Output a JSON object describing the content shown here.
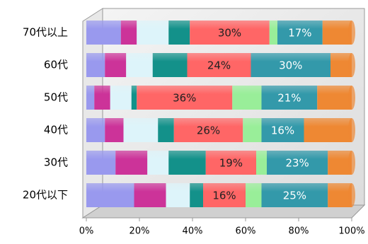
{
  "chart_data": {
    "type": "stacked-bar-horizontal",
    "categories": [
      "70代以上",
      "60代",
      "50代",
      "40代",
      "30代",
      "20代以下"
    ],
    "series": [
      {
        "color": "#9999ee",
        "values": [
          13,
          7,
          3,
          7,
          11,
          18
        ]
      },
      {
        "color": "#cc3399",
        "values": [
          6,
          8,
          6,
          7,
          12,
          12
        ]
      },
      {
        "color": "#ddf4fa",
        "values": [
          12,
          10,
          8,
          13,
          8,
          9
        ]
      },
      {
        "color": "#13918a",
        "values": [
          8,
          13,
          2,
          6,
          14,
          5
        ]
      },
      {
        "color": "#ff6666",
        "values": [
          30,
          24,
          36,
          26,
          19,
          16
        ],
        "value_labels": [
          "30%",
          "24%",
          "36%",
          "26%",
          "19%",
          "16%"
        ]
      },
      {
        "color": "#99ee99",
        "values": [
          3,
          0,
          11,
          7,
          4,
          6
        ]
      },
      {
        "color": "#3399aa",
        "values": [
          17,
          30,
          21,
          16,
          23,
          25
        ],
        "value_labels": [
          "17%",
          "30%",
          "21%",
          "16%",
          "23%",
          "25%"
        ]
      },
      {
        "color": "#ee8833",
        "values": [
          11,
          8,
          13,
          18,
          9,
          9
        ]
      }
    ],
    "xlim": [
      0,
      100
    ],
    "xticks": [
      {
        "value": 0,
        "label": "0%"
      },
      {
        "value": 20,
        "label": "20%"
      },
      {
        "value": 40,
        "label": "40%"
      },
      {
        "value": 60,
        "label": "60%"
      },
      {
        "value": 80,
        "label": "80%"
      },
      {
        "value": 100,
        "label": "100%"
      }
    ]
  }
}
